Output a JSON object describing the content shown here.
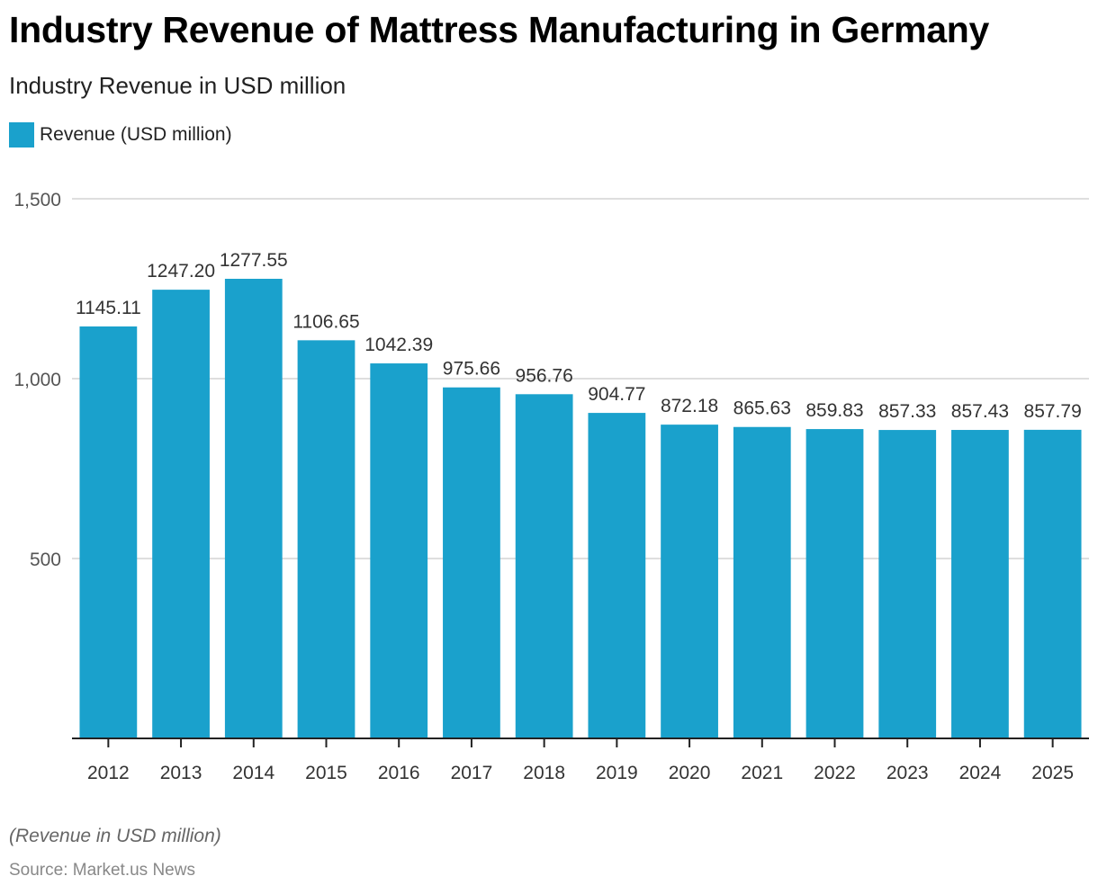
{
  "chart_data": {
    "type": "bar",
    "title": "Industry Revenue of Mattress Manufacturing in Germany",
    "subtitle": "Industry Revenue in USD million",
    "legend": {
      "position": "top-left",
      "entries": [
        {
          "name": "Revenue (USD million)",
          "color": "#1aa1cc"
        }
      ]
    },
    "xlabel": "",
    "ylabel": "",
    "ylim": [
      0,
      1500
    ],
    "yticks": [
      500,
      1000,
      1500
    ],
    "ytick_labels": [
      "500",
      "1,000",
      "1,500"
    ],
    "grid": true,
    "categories": [
      "2012",
      "2013",
      "2014",
      "2015",
      "2016",
      "2017",
      "2018",
      "2019",
      "2020",
      "2021",
      "2022",
      "2023",
      "2024",
      "2025"
    ],
    "series": [
      {
        "name": "Revenue (USD million)",
        "color": "#1aa1cc",
        "values": [
          1145.11,
          1247.2,
          1277.55,
          1106.65,
          1042.39,
          975.66,
          956.76,
          904.77,
          872.18,
          865.63,
          859.83,
          857.33,
          857.43,
          857.79
        ],
        "data_labels": [
          "1145.11",
          "1247.20",
          "1277.55",
          "1106.65",
          "1042.39",
          "975.66",
          "956.76",
          "904.77",
          "872.18",
          "865.63",
          "859.83",
          "857.33",
          "857.43",
          "857.79"
        ]
      }
    ],
    "footnote": "(Revenue in USD million)",
    "source": "Source: Market.us News"
  }
}
